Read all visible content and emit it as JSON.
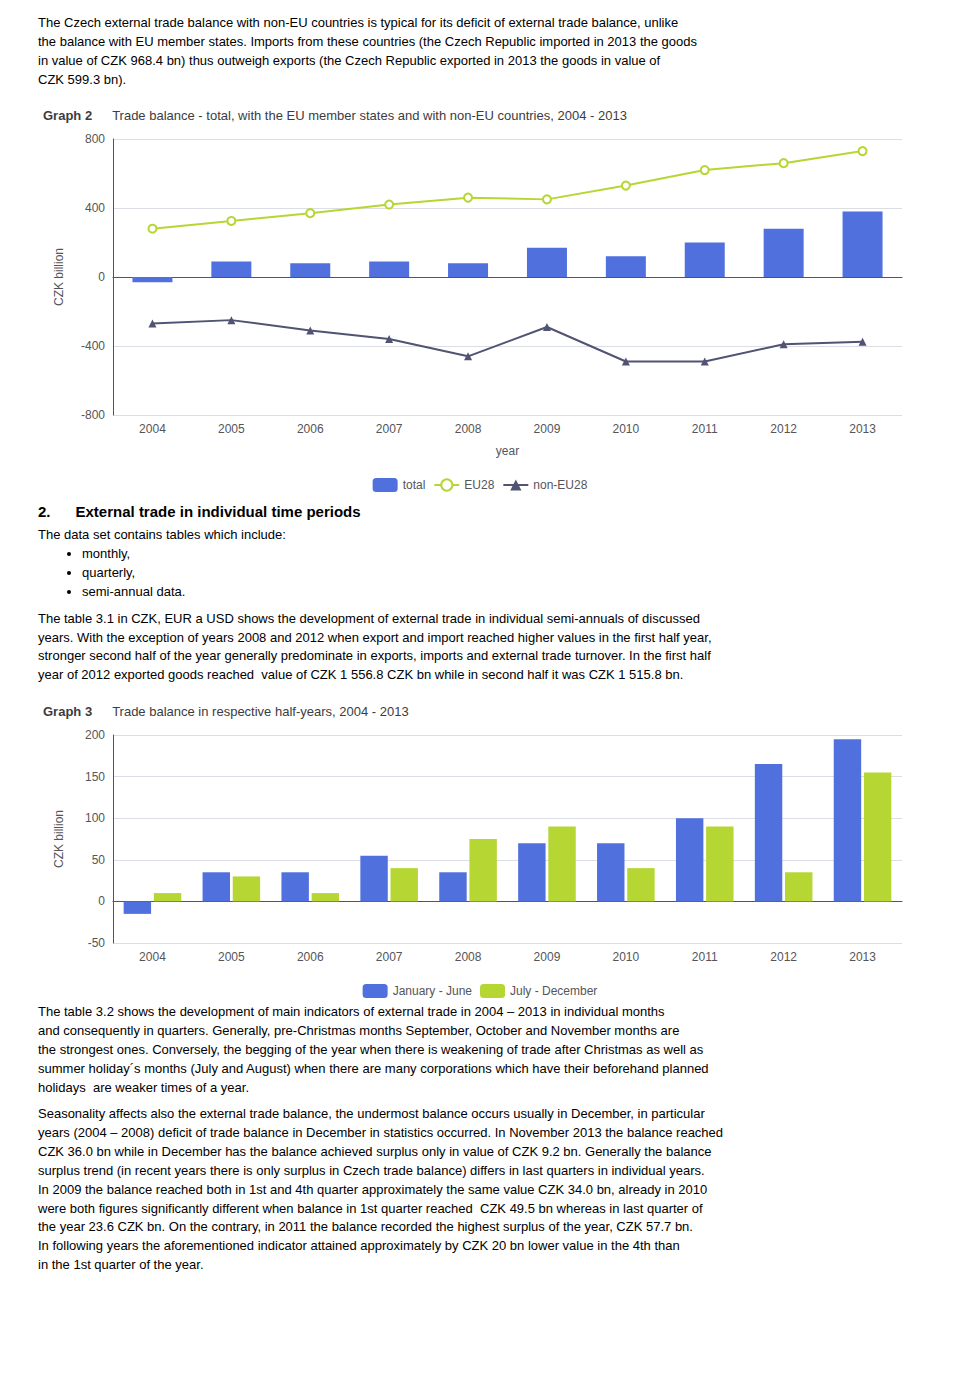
{
  "page_text": {
    "intro": "The Czech external trade balance with non-EU countries is typical for its deficit of external trade balance, unlike\nthe balance with EU member states. Imports from these countries (the Czech Republic imported in 2013 the goods\nin value of CZK 968.4 bn) thus outweigh exports (the Czech Republic exported in 2013 the goods in value of\nCZK 599.3 bn).",
    "section_title": "2.      External trade in individual time periods",
    "lead": "The data set contains tables which include:",
    "bullets": [
      "monthly,",
      "quarterly,",
      "semi-annual data."
    ],
    "para3": "The table 3.1 in CZK, EUR a USD shows the development of external trade in individual semi-annuals of discussed\nyears. With the exception of years 2008 and 2012 when export and import reached higher values in the first half year,\nstronger second half of the year generally predominate in exports, imports and external trade turnover. In the first half\nyear of 2012 exported goods reached  value of CZK 1 556.8 CZK bn while in second half it was CZK 1 515.8 bn.",
    "para4": "The table 3.2 shows the development of main indicators of external trade in 2004 – 2013 in individual months\nand consequently in quarters. Generally, pre-Christmas months September, October and November months are\nthe strongest ones. Conversely, the begging of the year when there is weakening of trade after Christmas as well as\nsummer holiday´s months (July and August) when there are many corporations which have their beforehand planned\nholidays  are weaker times of a year.",
    "para5": "Seasonality affects also the external trade balance, the undermost balance occurs usually in December, in particular\nyears (2004 – 2008) deficit of trade balance in December in statistics occurred. In November 2013 the balance reached\nCZK 36.0 bn while in December has the balance achieved surplus only in value of CZK 9.2 bn. Generally the balance\nsurplus trend (in recent years there is only surplus in Czech trade balance) differs in last quarters in individual years.\nIn 2009 the balance reached both in 1st and 4th quarter approximately the same value CZK 34.0 bn, already in 2010\nwere both figures significantly different when balance in 1st quarter reached  CZK 49.5 bn whereas in last quarter of\nthe year 23.6 CZK bn. On the contrary, in 2011 the balance recorded the highest surplus of the year, CZK 57.7 bn.\nIn following years the aforementioned indicator attained approximately by CZK 20 bn lower value in the 4th than\nin the 1st quarter of the year."
  },
  "chart_data": [
    {
      "type": "bar",
      "title": "Graph 2",
      "subtitle": "Trade balance - total, with the EU member states and with non-EU countries, 2004 - 2013",
      "categories": [
        "2004",
        "2005",
        "2006",
        "2007",
        "2008",
        "2009",
        "2010",
        "2011",
        "2012",
        "2013"
      ],
      "series": [
        {
          "name": "total",
          "type": "bar",
          "values": [
            -30,
            90,
            80,
            90,
            80,
            170,
            120,
            200,
            280,
            380
          ]
        },
        {
          "name": "EU28",
          "type": "line",
          "marker": "circle",
          "values": [
            280,
            325,
            370,
            420,
            460,
            450,
            530,
            620,
            660,
            730
          ]
        },
        {
          "name": "non-EU28",
          "type": "line",
          "marker": "triangle",
          "values": [
            -270,
            -250,
            -310,
            -360,
            -460,
            -290,
            -490,
            -490,
            -390,
            -375
          ]
        }
      ],
      "xlabel": "year",
      "ylabel": "CZK billion",
      "ylim": [
        -800,
        800
      ],
      "yticks": [
        -800,
        -400,
        0,
        400,
        800
      ],
      "grid": true,
      "legend": "bottom"
    },
    {
      "type": "bar",
      "title": "Graph 3",
      "subtitle": "Trade balance in respective half-years, 2004 - 2013",
      "categories": [
        "2004",
        "2005",
        "2006",
        "2007",
        "2008",
        "2009",
        "2010",
        "2011",
        "2012",
        "2013"
      ],
      "series": [
        {
          "name": "January - June",
          "values": [
            -15,
            35,
            35,
            55,
            35,
            70,
            70,
            100,
            165,
            195
          ]
        },
        {
          "name": "July - December",
          "values": [
            10,
            30,
            10,
            40,
            75,
            90,
            40,
            90,
            35,
            155
          ]
        }
      ],
      "ylabel": "CZK billion",
      "ylim": [
        -50,
        200
      ],
      "yticks": [
        -50,
        0,
        50,
        100,
        150,
        200
      ],
      "grid": true,
      "legend": "bottom"
    }
  ]
}
